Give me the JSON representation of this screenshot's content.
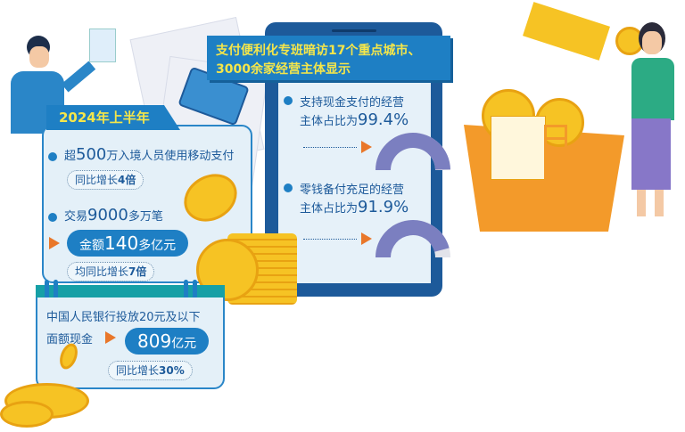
{
  "title": {
    "line1": "支付便利化专班暗访17个重点城市、",
    "line2": "3000余家经营主体显示"
  },
  "left_panel": {
    "header": "2024年上半年",
    "item1": {
      "prefix": "超",
      "number": "500",
      "suffix": "万入境人员使用移动支付",
      "badge_prefix": "同比增长",
      "badge_value": "4倍"
    },
    "item2": {
      "prefix": "交易",
      "number": "9000",
      "suffix": "多万笔",
      "pill_prefix": "金额",
      "pill_number": "140",
      "pill_suffix": "多亿元",
      "badge_prefix": "均同比增长",
      "badge_value": "7倍"
    }
  },
  "bottom_panel": {
    "line1": "中国人民银行投放20元及以下",
    "line2": "面额现金",
    "pill_number": "809",
    "pill_suffix": "亿元",
    "badge_prefix": "同比增长",
    "badge_value": "30%"
  },
  "right_panel": {
    "stat1": {
      "line1": "支持现金支付的经营",
      "line2_prefix": "主体占比为",
      "value_text": "99.4%",
      "value": 99.4
    },
    "stat2": {
      "line1": "零钱备付充足的经营",
      "line2_prefix": "主体占比为",
      "value_text": "91.9%",
      "value": 91.9
    }
  },
  "colors": {
    "primary_blue": "#1e7fc4",
    "dark_blue": "#1d5a9a",
    "title_yellow": "#f5e64a",
    "accent_orange": "#e9772a",
    "gauge_fill": "#7b7fc0",
    "gauge_track": "#e2e3ea",
    "teal": "#16a0a6",
    "coin_gold": "#f6c324"
  }
}
